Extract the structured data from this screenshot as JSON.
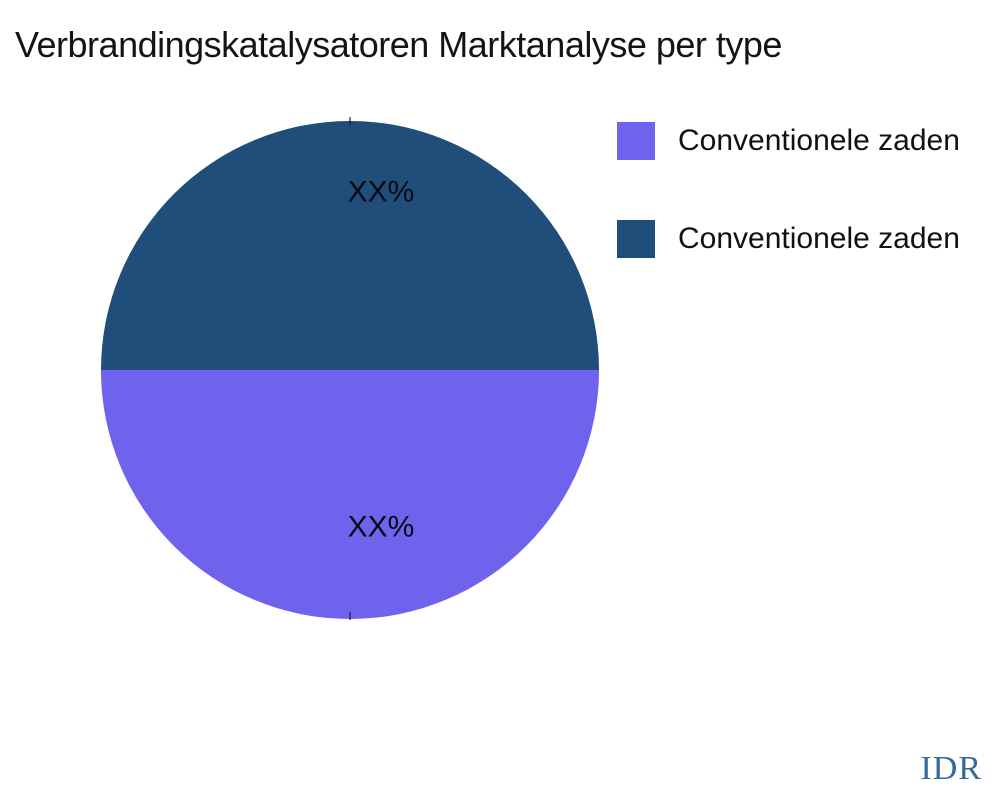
{
  "title": "Verbrandingskatalysatoren Marktanalyse per type",
  "watermark": "IDR",
  "legend": {
    "position": "right",
    "items": [
      {
        "label": "Conventionele zaden",
        "color": "#6f63ed"
      },
      {
        "label": "Conventionele zaden",
        "color": "#204e7a"
      }
    ]
  },
  "chart_data": {
    "type": "pie",
    "title": "Verbrandingskatalysatoren Marktanalyse per type",
    "labels": [
      "Conventionele zaden",
      "Conventionele zaden"
    ],
    "values": [
      50,
      50
    ],
    "value_display": [
      "XX%",
      "XX%"
    ],
    "colors": [
      "#6f63ed",
      "#204e7a"
    ],
    "legend_position": "right",
    "start_angle_deg": 0,
    "layout_hints": {
      "center": [
        350,
        370
      ],
      "radius": 249,
      "label_positions": [
        [
          381,
          527
        ],
        [
          381,
          192
        ]
      ]
    }
  },
  "ui_colors": {
    "background": "#ffffff",
    "title_text": "#141414",
    "slice_label_text": "#0a0a14",
    "legend_text": "#111111",
    "watermark_text": "#35689b"
  }
}
